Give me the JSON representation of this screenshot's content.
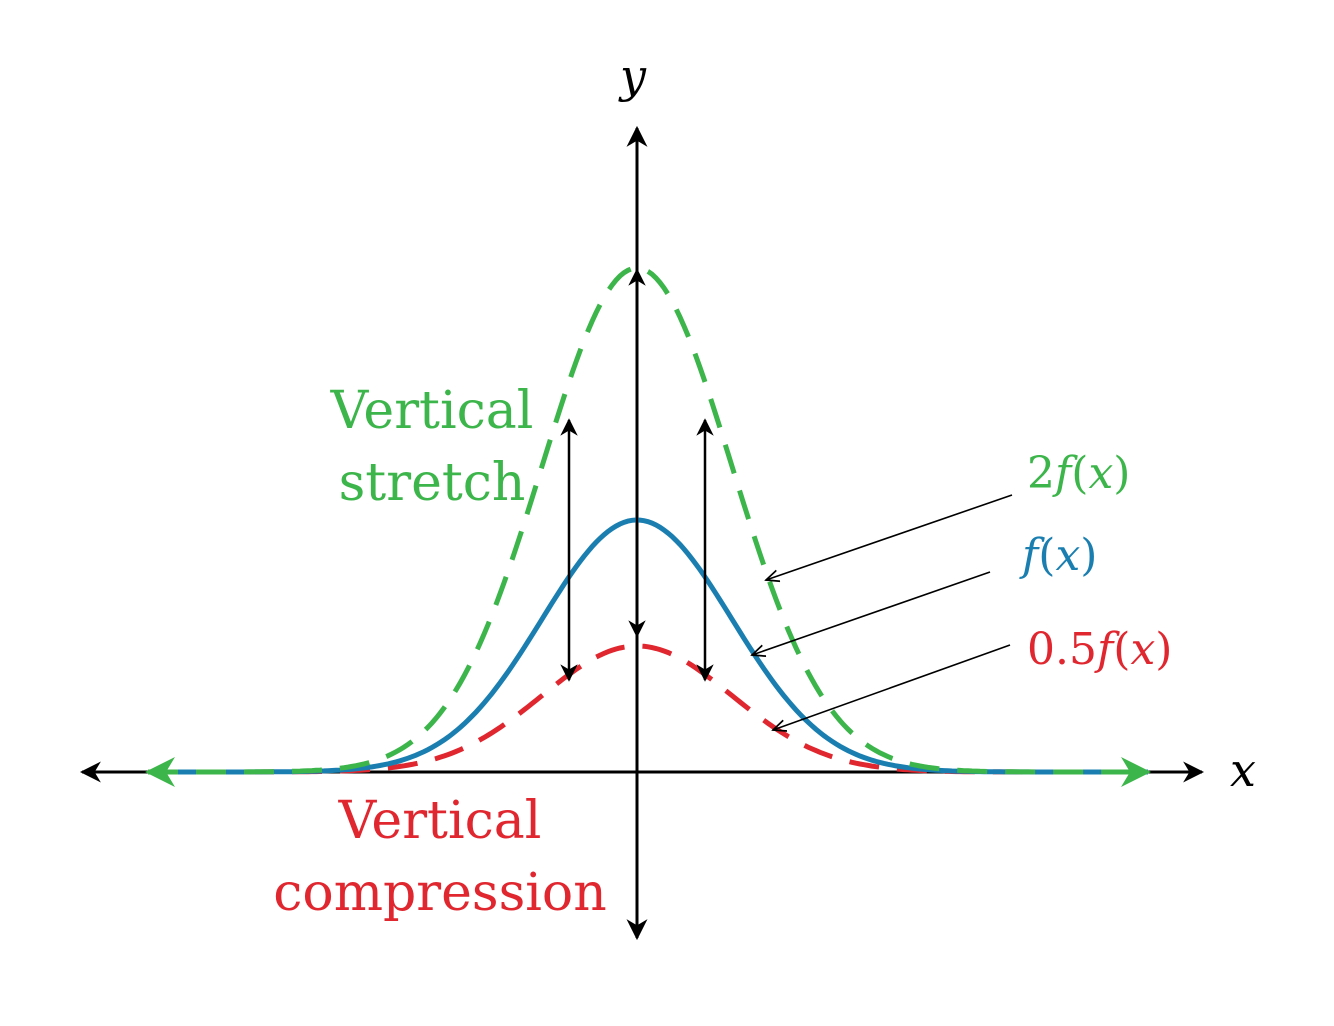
{
  "axes": {
    "x_label": "x",
    "y_label": "y"
  },
  "curves": {
    "stretched": {
      "label_coef": "2",
      "label_f": "f",
      "label_open": "(",
      "label_var": "x",
      "label_close": ")",
      "color": "#3cb54a",
      "peak": 2.0,
      "style": "dashed"
    },
    "original": {
      "label_coef": "",
      "label_f": "f",
      "label_open": "(",
      "label_var": "x",
      "label_close": ")",
      "color": "#1a7fb0",
      "peak": 1.0,
      "style": "solid"
    },
    "compressed": {
      "label_coef": "0.5",
      "label_f": "f",
      "label_open": "(",
      "label_var": "x",
      "label_close": ")",
      "color": "#e0262e",
      "peak": 0.5,
      "style": "dashed"
    }
  },
  "annotations": {
    "stretch_line1": "Vertical",
    "stretch_line2": "stretch",
    "compression_line1": "Vertical",
    "compression_line2": "compression"
  }
}
